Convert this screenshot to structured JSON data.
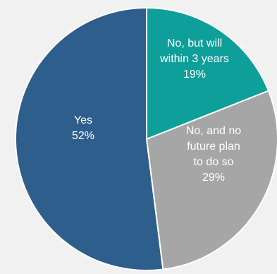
{
  "chart_data": {
    "type": "pie",
    "title": "",
    "slices": [
      {
        "label_lines": [
          "No, but will",
          "within 3 years"
        ],
        "value": 19,
        "value_label": "19%",
        "color": "#0f9f9a"
      },
      {
        "label_lines": [
          "No, and no",
          "future plan",
          "to do so"
        ],
        "value": 29,
        "value_label": "29%",
        "color": "#a6a6a6"
      },
      {
        "label_lines": [
          "Yes"
        ],
        "value": 52,
        "value_label": "52%",
        "color": "#2e5e8c"
      }
    ],
    "start_angle_deg": 0,
    "direction": "clockwise",
    "legend": "none",
    "background": "#f1f1f1",
    "slice_border_color": "#ffffff"
  }
}
